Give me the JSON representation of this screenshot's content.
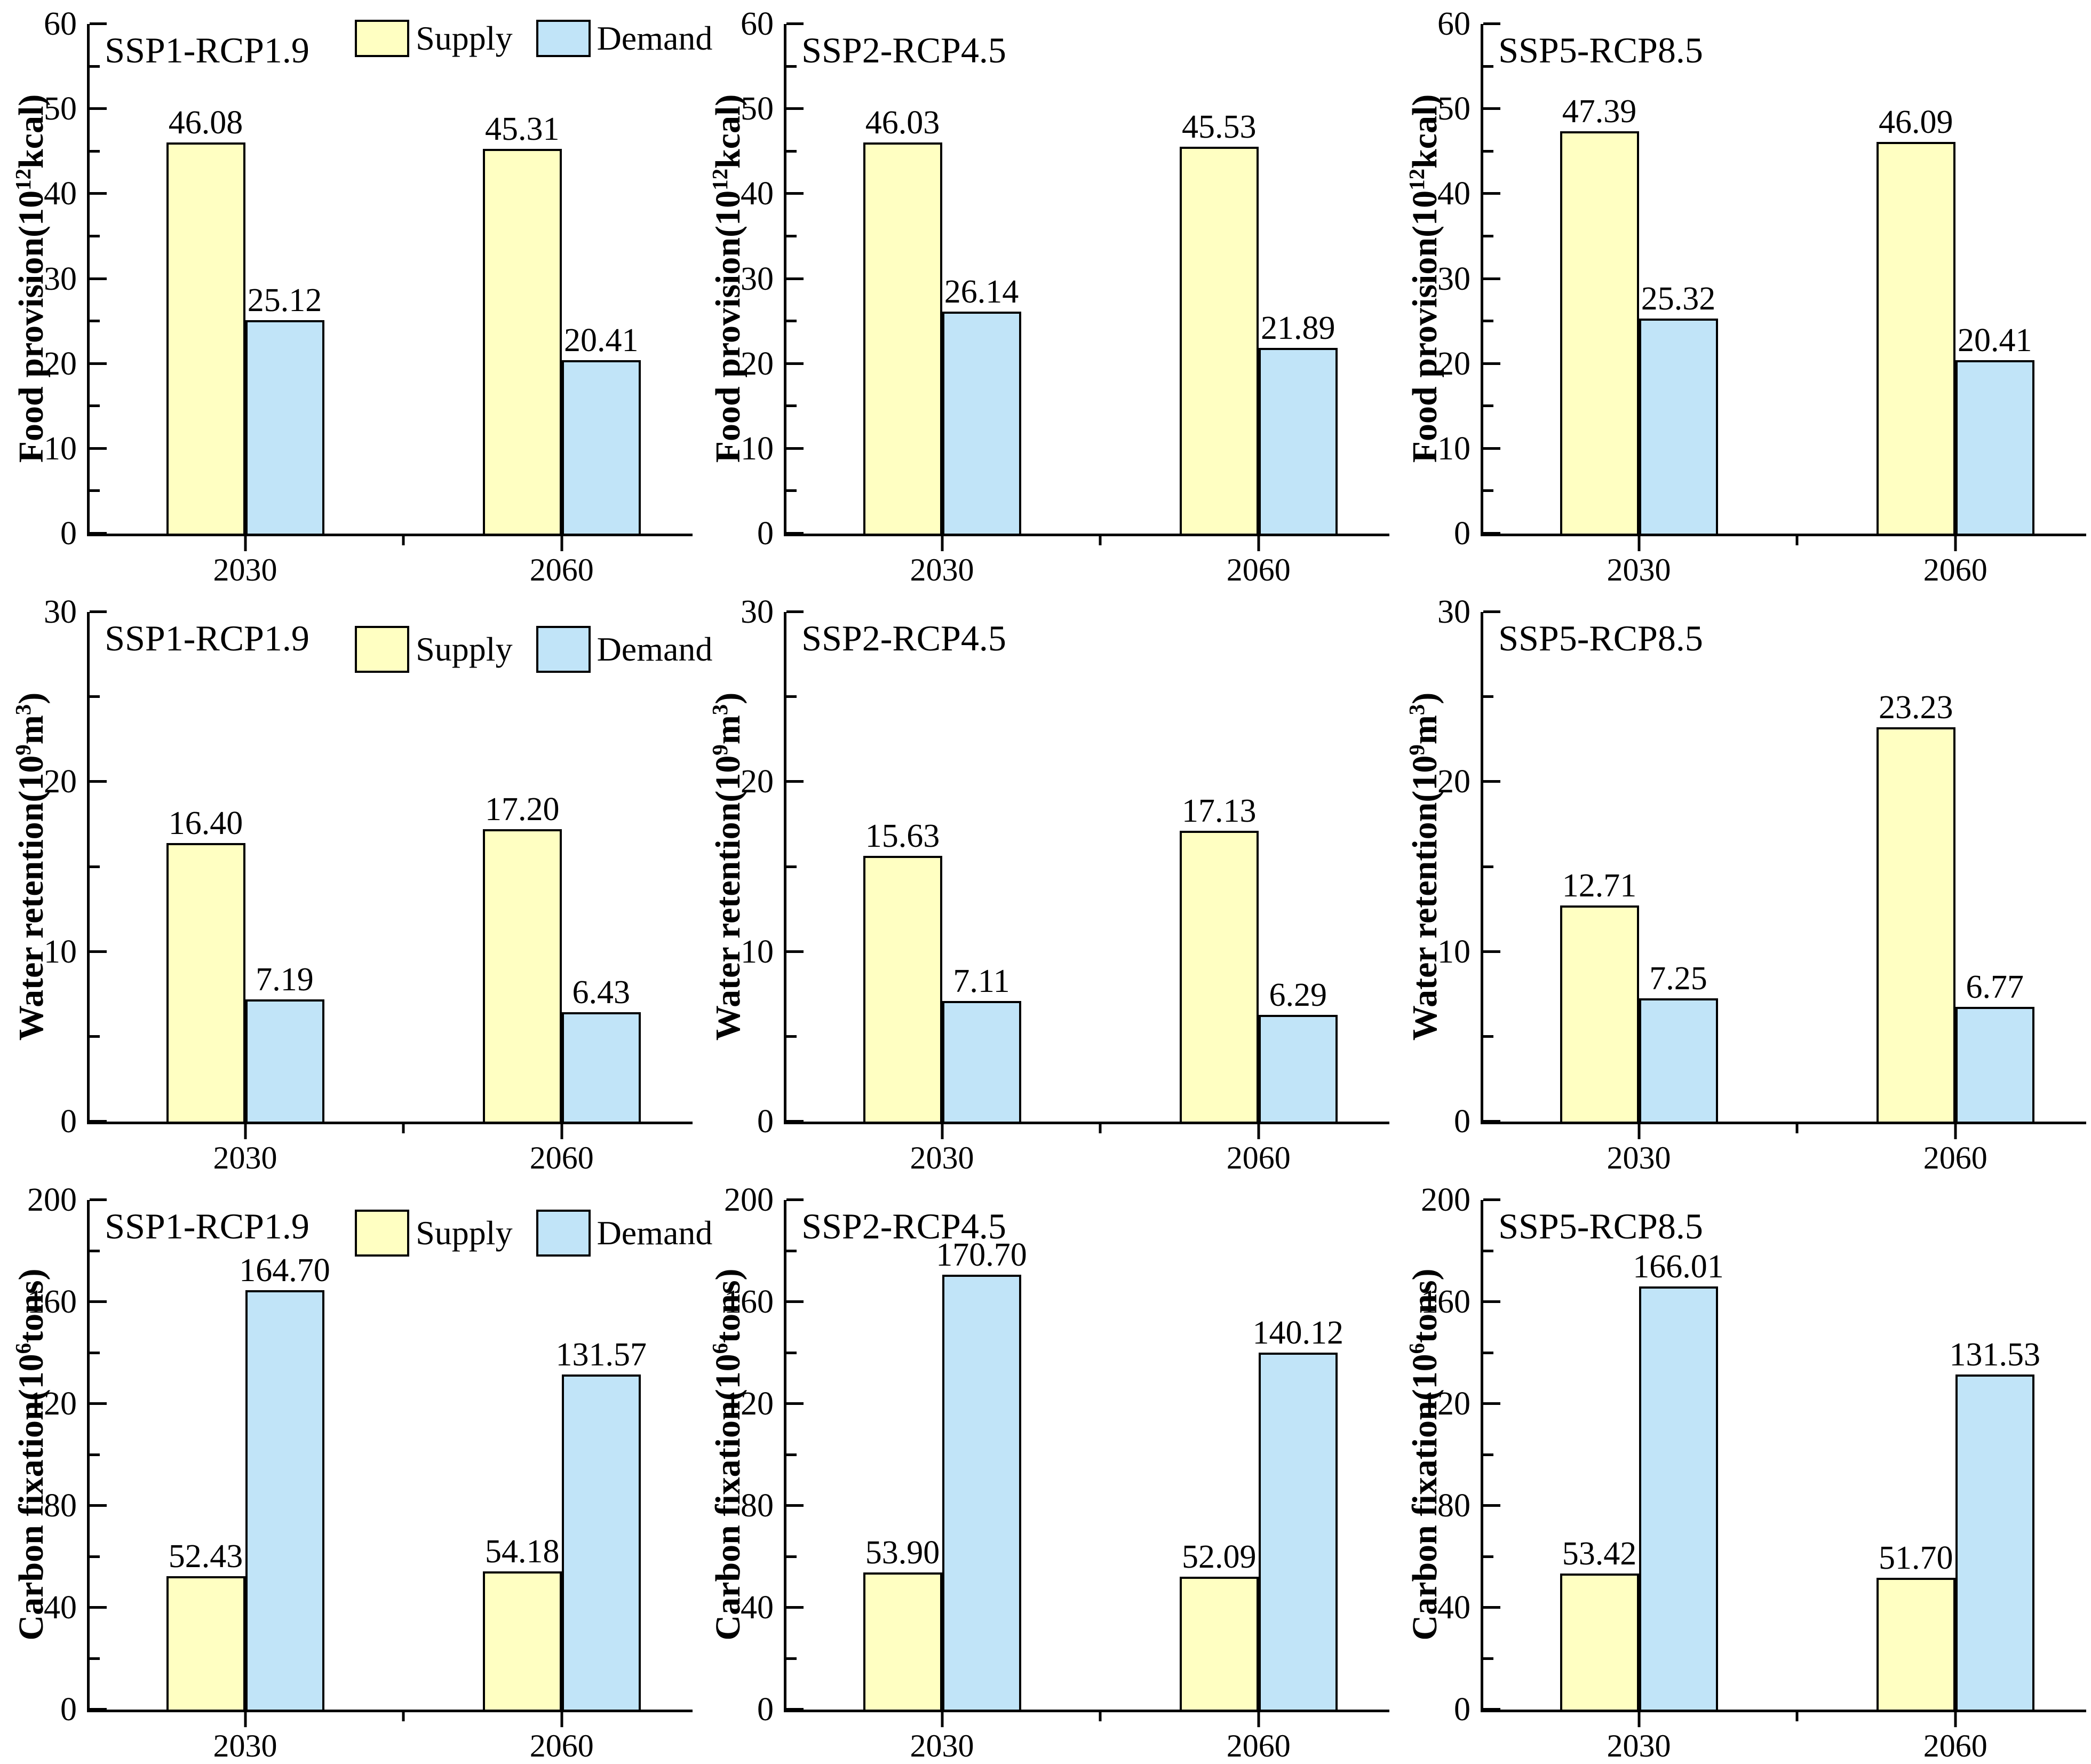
{
  "page": {
    "background": "#ffffff"
  },
  "legend": {
    "supply_label": "Supply",
    "demand_label": "Demand"
  },
  "chart_data": {
    "type": "bar",
    "series": [
      "Supply",
      "Demand"
    ],
    "categories": [
      "2030",
      "2060"
    ],
    "legend_position": "top-inside-first-column-panels",
    "grid": "off",
    "colors": {
      "supply": "#FFFFC2",
      "demand": "#C1E4F8",
      "outline": "#000000"
    },
    "rows": [
      {
        "ylabel_text": "Food provision(10¹²kcal)",
        "ylabel_parts": [
          {
            "t": "Food provision(10"
          },
          {
            "sup": "12"
          },
          {
            "t": "kcal)"
          }
        ],
        "ymin": 0,
        "ymax": 60,
        "yticks": [
          "0",
          "10",
          "20",
          "30",
          "40",
          "50",
          "60"
        ],
        "panels": [
          {
            "scenario": "SSP1-RCP1.9",
            "legend": true,
            "groups": [
              {
                "category": "2030",
                "supply": "46.08",
                "demand": "25.12"
              },
              {
                "category": "2060",
                "supply": "45.31",
                "demand": "20.41"
              }
            ]
          },
          {
            "scenario": "SSP2-RCP4.5",
            "legend": false,
            "groups": [
              {
                "category": "2030",
                "supply": "46.03",
                "demand": "26.14"
              },
              {
                "category": "2060",
                "supply": "45.53",
                "demand": "21.89"
              }
            ]
          },
          {
            "scenario": "SSP5-RCP8.5",
            "legend": false,
            "groups": [
              {
                "category": "2030",
                "supply": "47.39",
                "demand": "25.32"
              },
              {
                "category": "2060",
                "supply": "46.09",
                "demand": "20.41"
              }
            ]
          }
        ]
      },
      {
        "ylabel_text": "Water retention(10⁹m³)",
        "ylabel_parts": [
          {
            "t": "Water retention(10"
          },
          {
            "sup": "9"
          },
          {
            "t": "m"
          },
          {
            "sup": "3"
          },
          {
            "t": ")"
          }
        ],
        "ymin": 0,
        "ymax": 30,
        "yticks": [
          "0",
          "10",
          "20",
          "30"
        ],
        "panels": [
          {
            "scenario": "SSP1-RCP1.9",
            "legend": true,
            "groups": [
              {
                "category": "2030",
                "supply": "16.40",
                "demand": "7.19"
              },
              {
                "category": "2060",
                "supply": "17.20",
                "demand": "6.43"
              }
            ]
          },
          {
            "scenario": "SSP2-RCP4.5",
            "legend": false,
            "groups": [
              {
                "category": "2030",
                "supply": "15.63",
                "demand": "7.11"
              },
              {
                "category": "2060",
                "supply": "17.13",
                "demand": "6.29"
              }
            ]
          },
          {
            "scenario": "SSP5-RCP8.5",
            "legend": false,
            "groups": [
              {
                "category": "2030",
                "supply": "12.71",
                "demand": "7.25"
              },
              {
                "category": "2060",
                "supply": "23.23",
                "demand": "6.77"
              }
            ]
          }
        ]
      },
      {
        "ylabel_text": "Carbon fixation(10⁶tons)",
        "ylabel_parts": [
          {
            "t": "Carbon fixation(10"
          },
          {
            "sup": "6"
          },
          {
            "t": "tons)"
          }
        ],
        "ymin": 0,
        "ymax": 200,
        "yticks": [
          "0",
          "40",
          "80",
          "120",
          "160",
          "200"
        ],
        "panels": [
          {
            "scenario": "SSP1-RCP1.9",
            "legend": true,
            "groups": [
              {
                "category": "2030",
                "supply": "52.43",
                "demand": "164.70"
              },
              {
                "category": "2060",
                "supply": "54.18",
                "demand": "131.57"
              }
            ]
          },
          {
            "scenario": "SSP2-RCP4.5",
            "legend": false,
            "groups": [
              {
                "category": "2030",
                "supply": "53.90",
                "demand": "170.70"
              },
              {
                "category": "2060",
                "supply": "52.09",
                "demand": "140.12"
              }
            ]
          },
          {
            "scenario": "SSP5-RCP8.5",
            "legend": false,
            "groups": [
              {
                "category": "2030",
                "supply": "53.42",
                "demand": "166.01"
              },
              {
                "category": "2060",
                "supply": "51.70",
                "demand": "131.53"
              }
            ]
          }
        ]
      }
    ]
  }
}
